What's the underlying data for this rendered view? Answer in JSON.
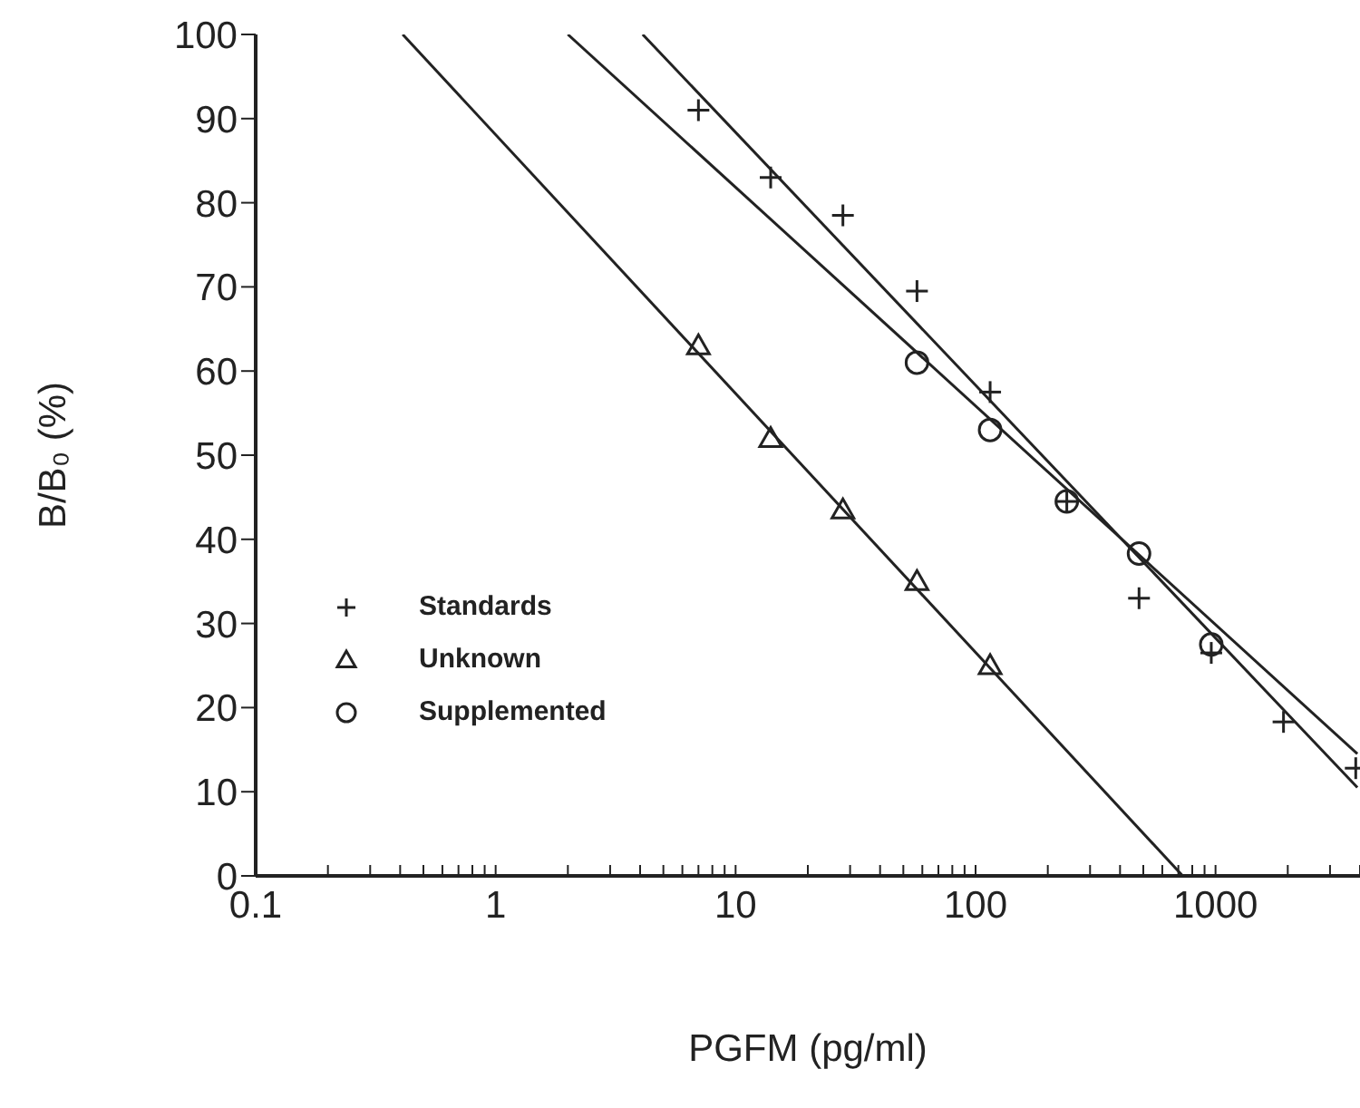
{
  "chart_data": {
    "type": "scatter",
    "xlabel": "PGFM (pg/ml)",
    "ylabel": "B/B₀ (%)",
    "log": "x",
    "xlim": [
      0.1,
      4000
    ],
    "ylim": [
      0,
      100
    ],
    "xticks": [
      0.1,
      {
        "value": 0.2,
        "label": null
      },
      {
        "value": 0.3,
        "label": null
      },
      {
        "value": 0.4,
        "label": null
      },
      {
        "value": 0.5,
        "label": null
      },
      {
        "value": 0.6,
        "label": null
      },
      {
        "value": 0.7,
        "label": null
      },
      {
        "value": 0.8,
        "label": null
      },
      {
        "value": 0.9,
        "label": null
      },
      1,
      {
        "value": 2,
        "label": null
      },
      {
        "value": 3,
        "label": null
      },
      {
        "value": 4,
        "label": null
      },
      {
        "value": 5,
        "label": null
      },
      {
        "value": 6,
        "label": null
      },
      {
        "value": 7,
        "label": null
      },
      {
        "value": 8,
        "label": null
      },
      {
        "value": 9,
        "label": null
      },
      10,
      {
        "value": 20,
        "label": null
      },
      {
        "value": 30,
        "label": null
      },
      {
        "value": 40,
        "label": null
      },
      {
        "value": 50,
        "label": null
      },
      {
        "value": 60,
        "label": null
      },
      {
        "value": 70,
        "label": null
      },
      {
        "value": 80,
        "label": null
      },
      {
        "value": 90,
        "label": null
      },
      100,
      {
        "value": 200,
        "label": null
      },
      {
        "value": 300,
        "label": null
      },
      {
        "value": 400,
        "label": null
      },
      {
        "value": 500,
        "label": null
      },
      {
        "value": 600,
        "label": null
      },
      {
        "value": 700,
        "label": null
      },
      {
        "value": 800,
        "label": null
      },
      {
        "value": 900,
        "label": null
      },
      1000,
      {
        "value": 2000,
        "label": null
      },
      {
        "value": 3000,
        "label": null
      },
      {
        "value": 4000,
        "label": null
      }
    ],
    "yticks": [
      0,
      10,
      20,
      30,
      40,
      50,
      60,
      70,
      80,
      90,
      100
    ],
    "grid": false,
    "legend": "left",
    "series": [
      {
        "name": "Standards",
        "type": "scatter",
        "marker": "cross",
        "color": "#222222",
        "x": [
          7,
          14,
          28,
          57,
          115,
          240,
          480,
          960,
          1920,
          3840
        ],
        "values": [
          91,
          83,
          78.5,
          69.5,
          57.5,
          44.5,
          33,
          26.5,
          18.3,
          12.8
        ]
      },
      {
        "name": "Unknown",
        "type": "scatter",
        "marker": "triangle",
        "color": "#222222",
        "x": [
          7,
          14,
          28,
          57,
          115
        ],
        "values": [
          63,
          52,
          43.5,
          35,
          25
        ]
      },
      {
        "name": "Supplemented",
        "type": "scatter",
        "marker": "circle",
        "color": "#222222",
        "x": [
          57,
          115,
          240,
          480,
          960
        ],
        "values": [
          61,
          53,
          44.5,
          38.3,
          27.5
        ]
      },
      {
        "type": "line",
        "marker": "none",
        "line_style": "solid",
        "color": "#222222",
        "x": [
          4.1,
          3900
        ],
        "values": [
          100,
          10.5
        ]
      },
      {
        "type": "line",
        "marker": "none",
        "line_style": "solid",
        "color": "#222222",
        "x": [
          0.41,
          730
        ],
        "values": [
          100,
          0
        ]
      },
      {
        "type": "line",
        "marker": "none",
        "line_style": "solid",
        "color": "#222222",
        "x": [
          2,
          3900
        ],
        "values": [
          100,
          14.5
        ]
      }
    ]
  }
}
